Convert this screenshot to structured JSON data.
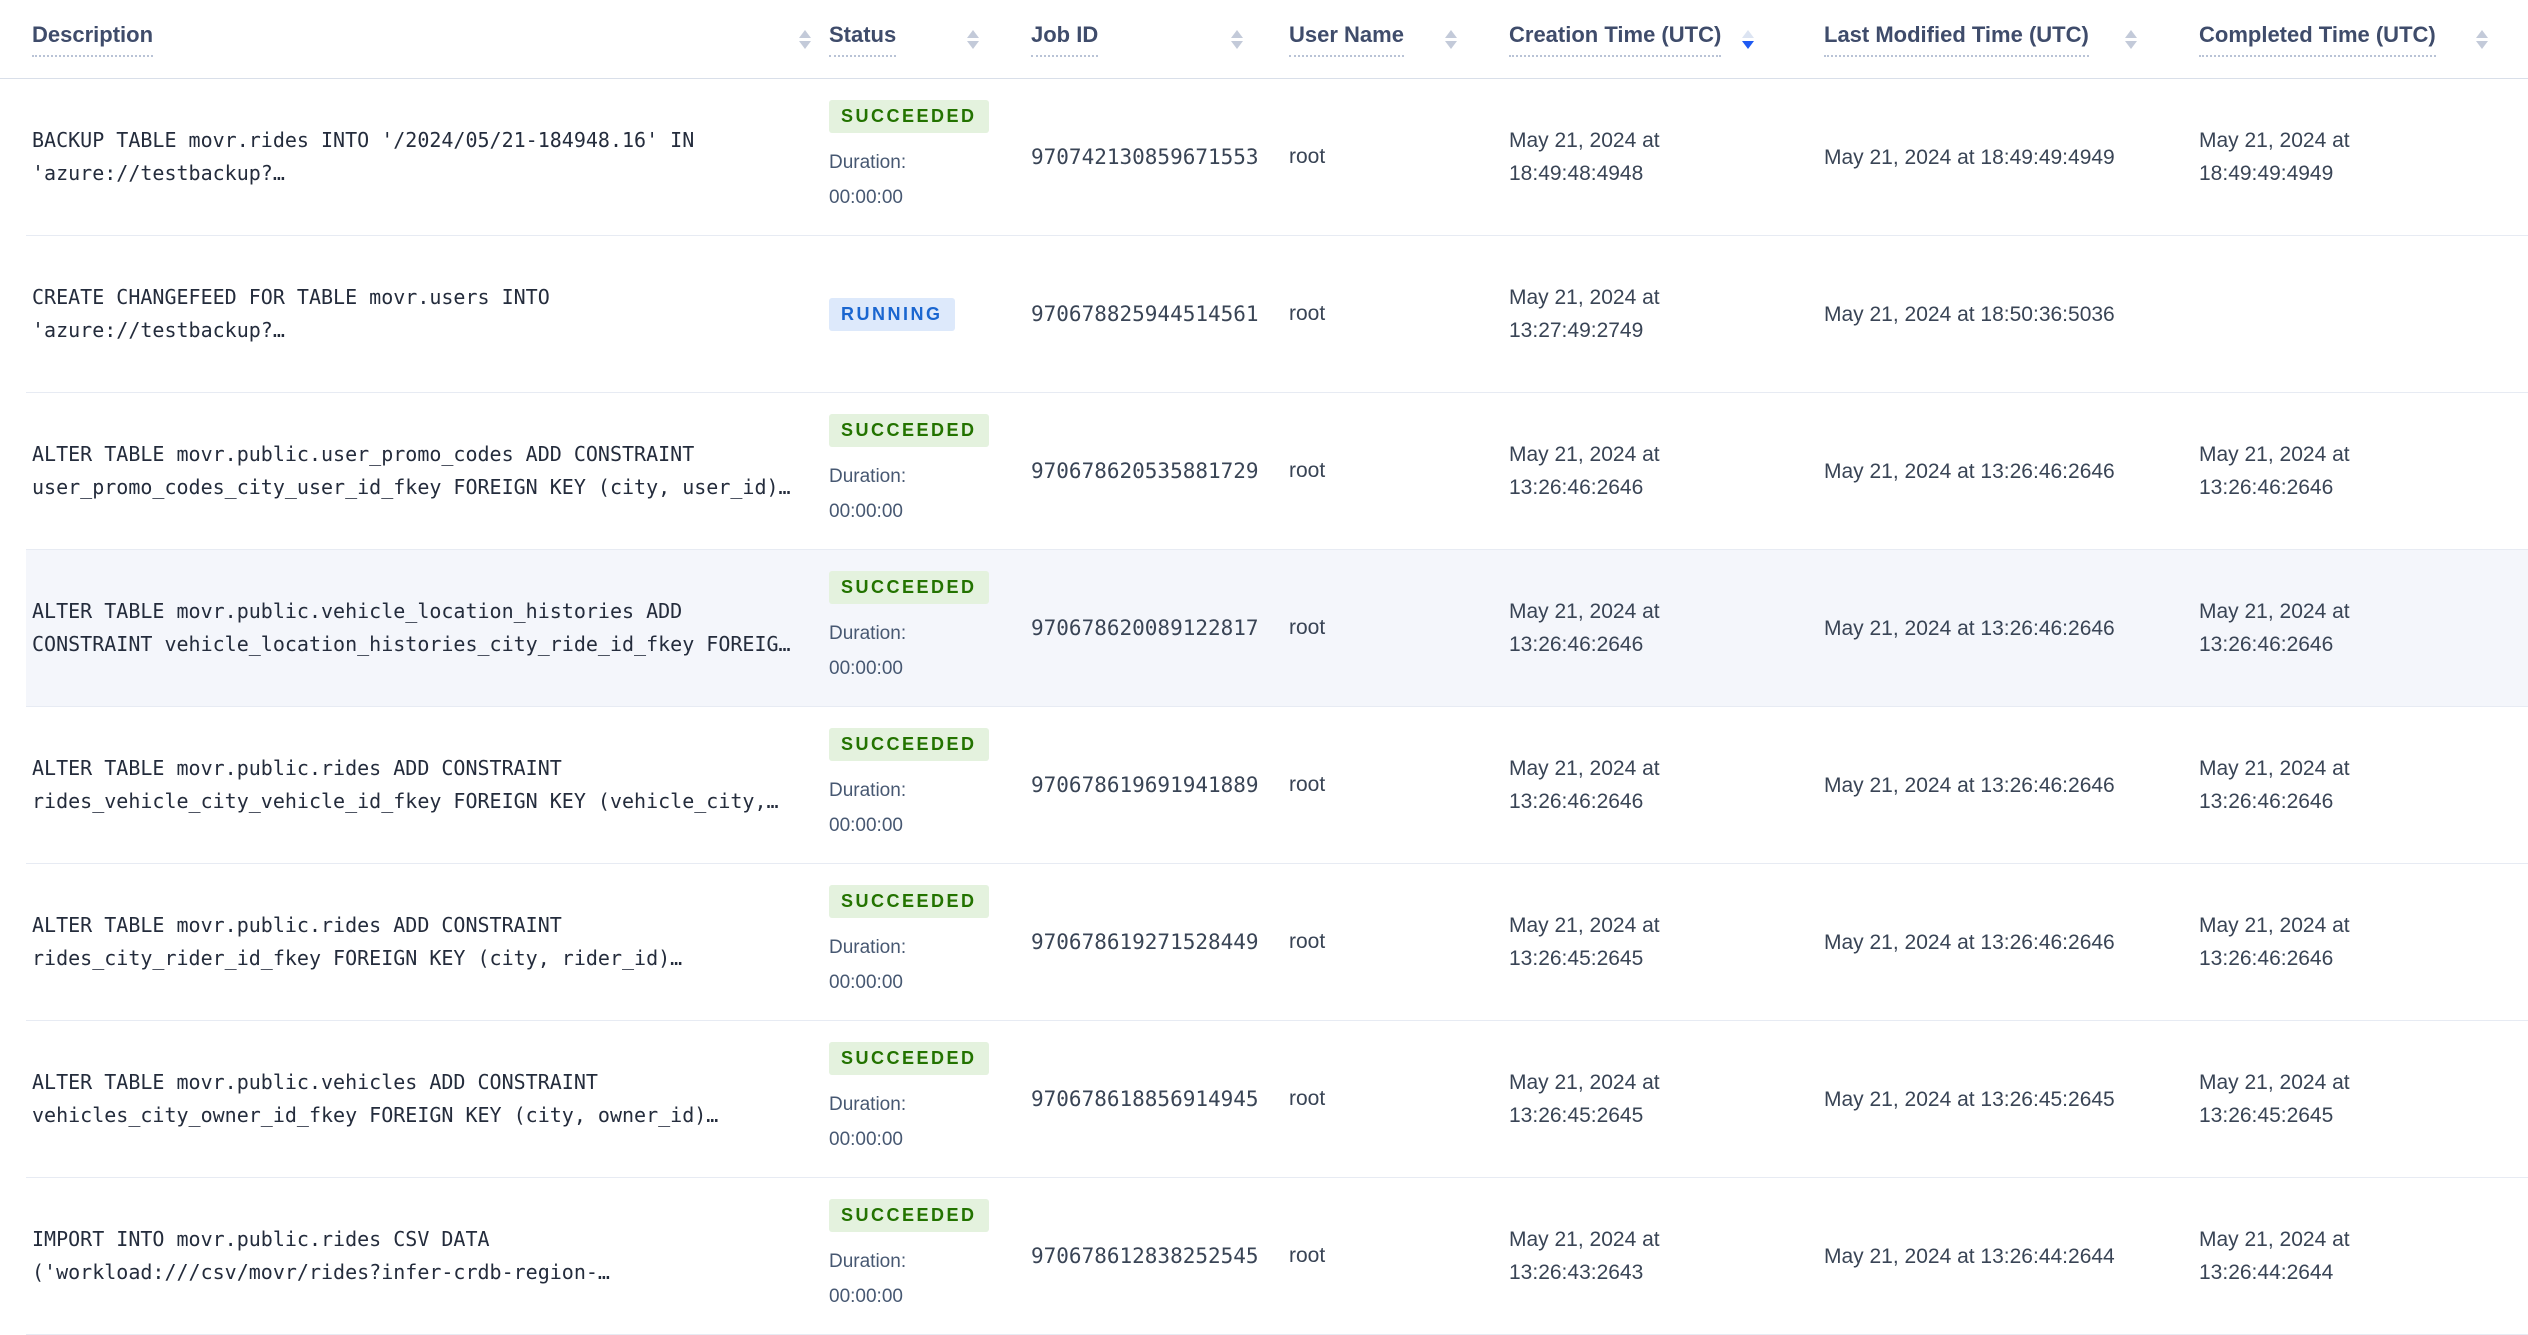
{
  "colors": {
    "sort_active": "#1f5af2",
    "row_highlight": "#f4f6fb",
    "header_text": "#3f4c6b"
  },
  "status_styles": {
    "SUCCEEDED": {
      "bg": "#e4f2de",
      "fg": "#237300"
    },
    "RUNNING": {
      "bg": "#dde9fb",
      "fg": "#1a66d0"
    }
  },
  "table": {
    "columns": [
      {
        "label": "Description",
        "sort": "none"
      },
      {
        "label": "Status",
        "sort": "none"
      },
      {
        "label": "Job ID",
        "sort": "none"
      },
      {
        "label": "User Name",
        "sort": "none"
      },
      {
        "label": "Creation Time (UTC)",
        "sort": "desc"
      },
      {
        "label": "Last Modified Time (UTC)",
        "sort": "none"
      },
      {
        "label": "Completed Time (UTC)",
        "sort": "none"
      }
    ],
    "rows": [
      {
        "description": "BACKUP TABLE movr.rides INTO '/2024/05/21-184948.16' IN 'azure://testbackup?…",
        "status": "SUCCEEDED",
        "duration_label": "Duration:",
        "duration": "00:00:00",
        "job_id": "970742130859671553",
        "user": "root",
        "created": "May 21, 2024 at 18:49:48:4948",
        "modified": "May 21, 2024 at 18:49:49:4949",
        "completed": "May 21, 2024 at 18:49:49:4949",
        "highlighted": false
      },
      {
        "description": "CREATE CHANGEFEED FOR TABLE movr.users INTO 'azure://testbackup?…",
        "status": "RUNNING",
        "duration_label": "",
        "duration": "",
        "job_id": "970678825944514561",
        "user": "root",
        "created": "May 21, 2024 at 13:27:49:2749",
        "modified": "May 21, 2024 at 18:50:36:5036",
        "completed": "",
        "highlighted": false
      },
      {
        "description": "ALTER TABLE movr.public.user_promo_codes ADD CONSTRAINT user_promo_codes_city_user_id_fkey FOREIGN KEY (city, user_id)…",
        "status": "SUCCEEDED",
        "duration_label": "Duration:",
        "duration": "00:00:00",
        "job_id": "970678620535881729",
        "user": "root",
        "created": "May 21, 2024 at 13:26:46:2646",
        "modified": "May 21, 2024 at 13:26:46:2646",
        "completed": "May 21, 2024 at 13:26:46:2646",
        "highlighted": false
      },
      {
        "description": "ALTER TABLE movr.public.vehicle_location_histories ADD CONSTRAINT vehicle_location_histories_city_ride_id_fkey FOREIG…",
        "status": "SUCCEEDED",
        "duration_label": "Duration:",
        "duration": "00:00:00",
        "job_id": "970678620089122817",
        "user": "root",
        "created": "May 21, 2024 at 13:26:46:2646",
        "modified": "May 21, 2024 at 13:26:46:2646",
        "completed": "May 21, 2024 at 13:26:46:2646",
        "highlighted": true
      },
      {
        "description": "ALTER TABLE movr.public.rides ADD CONSTRAINT rides_vehicle_city_vehicle_id_fkey FOREIGN KEY (vehicle_city,…",
        "status": "SUCCEEDED",
        "duration_label": "Duration:",
        "duration": "00:00:00",
        "job_id": "970678619691941889",
        "user": "root",
        "created": "May 21, 2024 at 13:26:46:2646",
        "modified": "May 21, 2024 at 13:26:46:2646",
        "completed": "May 21, 2024 at 13:26:46:2646",
        "highlighted": false
      },
      {
        "description": "ALTER TABLE movr.public.rides ADD CONSTRAINT rides_city_rider_id_fkey FOREIGN KEY (city, rider_id)…",
        "status": "SUCCEEDED",
        "duration_label": "Duration:",
        "duration": "00:00:00",
        "job_id": "970678619271528449",
        "user": "root",
        "created": "May 21, 2024 at 13:26:45:2645",
        "modified": "May 21, 2024 at 13:26:46:2646",
        "completed": "May 21, 2024 at 13:26:46:2646",
        "highlighted": false
      },
      {
        "description": "ALTER TABLE movr.public.vehicles ADD CONSTRAINT vehicles_city_owner_id_fkey FOREIGN KEY (city, owner_id)…",
        "status": "SUCCEEDED",
        "duration_label": "Duration:",
        "duration": "00:00:00",
        "job_id": "970678618856914945",
        "user": "root",
        "created": "May 21, 2024 at 13:26:45:2645",
        "modified": "May 21, 2024 at 13:26:45:2645",
        "completed": "May 21, 2024 at 13:26:45:2645",
        "highlighted": false
      },
      {
        "description": "IMPORT INTO movr.public.rides CSV DATA ('workload:///csv/movr/rides?infer-crdb-region-…",
        "status": "SUCCEEDED",
        "duration_label": "Duration:",
        "duration": "00:00:00",
        "job_id": "970678612838252545",
        "user": "root",
        "created": "May 21, 2024 at 13:26:43:2643",
        "modified": "May 21, 2024 at 13:26:44:2644",
        "completed": "May 21, 2024 at 13:26:44:2644",
        "highlighted": false
      }
    ]
  }
}
